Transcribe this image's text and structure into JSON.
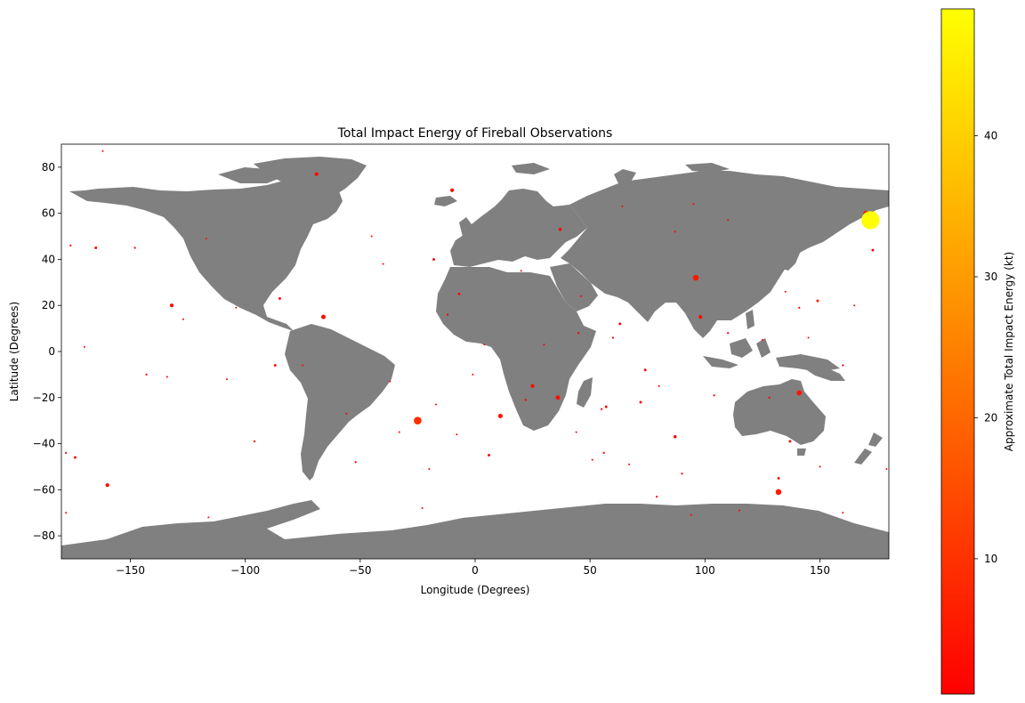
{
  "chart_data": {
    "type": "scatter",
    "title": "Total Impact Energy of Fireball Observations",
    "xlabel": "Longitude (Degrees)",
    "ylabel": "Latitude (Degrees)",
    "xlim": [
      -180,
      180
    ],
    "ylim": [
      -90,
      90
    ],
    "xticks": [
      -150,
      -100,
      -50,
      0,
      50,
      100,
      150
    ],
    "yticks": [
      -80,
      -60,
      -40,
      -20,
      0,
      20,
      40,
      60,
      80
    ],
    "xtick_labels": [
      "−150",
      "−100",
      "−50",
      "0",
      "50",
      "100",
      "150"
    ],
    "ytick_labels": [
      "−80",
      "−60",
      "−40",
      "−20",
      "0",
      "20",
      "40",
      "60",
      "80"
    ],
    "background_map": "world land masses (gray)",
    "land_color": "#808080",
    "ocean_color": "#ffffff",
    "grid": false,
    "colorbar": {
      "label": "Approximate Total Impact Energy (kt)",
      "range": [
        0.4,
        49
      ],
      "ticks": [
        10,
        20,
        30,
        40
      ],
      "tick_labels": [
        "10",
        "20",
        "30",
        "40"
      ],
      "colormap": "autumn",
      "color_low": "#ff0000",
      "color_high": "#ffff00"
    },
    "points": [
      {
        "lon": 172,
        "lat": 57,
        "energy": 49
      },
      {
        "lon": -25,
        "lat": -30,
        "energy": 9
      },
      {
        "lon": 96,
        "lat": 32,
        "energy": 5
      },
      {
        "lon": 132,
        "lat": -61,
        "energy": 5
      },
      {
        "lon": 170,
        "lat": 60,
        "energy": 4
      },
      {
        "lon": 141,
        "lat": -18,
        "energy": 4
      },
      {
        "lon": 36,
        "lat": -20,
        "energy": 3
      },
      {
        "lon": 11,
        "lat": -28,
        "energy": 3
      },
      {
        "lon": -66,
        "lat": 15,
        "energy": 3
      },
      {
        "lon": 25,
        "lat": -15,
        "energy": 2
      },
      {
        "lon": 98,
        "lat": 15,
        "energy": 2
      },
      {
        "lon": -132,
        "lat": 20,
        "energy": 2
      },
      {
        "lon": -160,
        "lat": -58,
        "energy": 2
      },
      {
        "lon": -10,
        "lat": 70,
        "energy": 2
      },
      {
        "lon": -69,
        "lat": 77,
        "energy": 2
      },
      {
        "lon": 37,
        "lat": 53,
        "energy": 1.5
      },
      {
        "lon": 87,
        "lat": -37,
        "energy": 1.5
      },
      {
        "lon": -174,
        "lat": -46,
        "energy": 1
      },
      {
        "lon": -165,
        "lat": 45,
        "energy": 1
      },
      {
        "lon": -18,
        "lat": 40,
        "energy": 1
      },
      {
        "lon": 57,
        "lat": -24,
        "energy": 1
      },
      {
        "lon": 149,
        "lat": 22,
        "energy": 1
      },
      {
        "lon": 137,
        "lat": -39,
        "energy": 1
      },
      {
        "lon": 132,
        "lat": -55,
        "energy": 1
      },
      {
        "lon": 173,
        "lat": 44,
        "energy": 1
      },
      {
        "lon": -85,
        "lat": 23,
        "energy": 1
      },
      {
        "lon": -87,
        "lat": -6,
        "energy": 1
      },
      {
        "lon": -7,
        "lat": 25,
        "energy": 1
      },
      {
        "lon": 6,
        "lat": -45,
        "energy": 1
      },
      {
        "lon": 63,
        "lat": 12,
        "energy": 1
      },
      {
        "lon": 72,
        "lat": -22,
        "energy": 1
      },
      {
        "lon": 74,
        "lat": -8,
        "energy": 1
      },
      {
        "lon": -148,
        "lat": 45,
        "energy": 0.6
      },
      {
        "lon": -176,
        "lat": 46,
        "energy": 0.6
      },
      {
        "lon": -178,
        "lat": -44,
        "energy": 0.6
      },
      {
        "lon": -143,
        "lat": -10,
        "energy": 0.6
      },
      {
        "lon": -12,
        "lat": 16,
        "energy": 0.6
      },
      {
        "lon": 22,
        "lat": -21,
        "energy": 0.6
      },
      {
        "lon": 56,
        "lat": -44,
        "energy": 0.6
      },
      {
        "lon": 104,
        "lat": -19,
        "energy": 0.6
      },
      {
        "lon": 141,
        "lat": 19,
        "energy": 0.6
      },
      {
        "lon": 128,
        "lat": -20,
        "energy": 0.6
      },
      {
        "lon": 160,
        "lat": -6,
        "energy": 0.6
      },
      {
        "lon": -52,
        "lat": -48,
        "energy": 0.6
      },
      {
        "lon": 90,
        "lat": -53,
        "energy": 0.6
      },
      {
        "lon": -96,
        "lat": -39,
        "energy": 0.6
      },
      {
        "lon": 110,
        "lat": 8,
        "energy": 0.6
      },
      {
        "lon": 60,
        "lat": 6,
        "energy": 0.6
      },
      {
        "lon": 45,
        "lat": 8,
        "energy": 0.6
      },
      {
        "lon": 55,
        "lat": -25,
        "energy": 0.6
      },
      {
        "lon": 79,
        "lat": -63,
        "energy": 0.6
      },
      {
        "lon": -117,
        "lat": 49,
        "energy": 0.4
      },
      {
        "lon": -134,
        "lat": -11,
        "energy": 0.4
      },
      {
        "lon": -104,
        "lat": 19,
        "energy": 0.4
      },
      {
        "lon": -45,
        "lat": 50,
        "energy": 0.4
      },
      {
        "lon": -40,
        "lat": 38,
        "energy": 0.4
      },
      {
        "lon": -37,
        "lat": -13,
        "energy": 0.4
      },
      {
        "lon": -33,
        "lat": -35,
        "energy": 0.4
      },
      {
        "lon": -20,
        "lat": -51,
        "energy": 0.4
      },
      {
        "lon": -8,
        "lat": -36,
        "energy": 0.4
      },
      {
        "lon": -1,
        "lat": -10,
        "energy": 0.4
      },
      {
        "lon": 4,
        "lat": 3,
        "energy": 0.4
      },
      {
        "lon": 30,
        "lat": 3,
        "energy": 0.4
      },
      {
        "lon": 44,
        "lat": -35,
        "energy": 0.4
      },
      {
        "lon": 51,
        "lat": -47,
        "energy": 0.4
      },
      {
        "lon": 67,
        "lat": -49,
        "energy": 0.4
      },
      {
        "lon": 80,
        "lat": -15,
        "energy": 0.4
      },
      {
        "lon": 94,
        "lat": -71,
        "energy": 0.4
      },
      {
        "lon": 115,
        "lat": -69,
        "energy": 0.4
      },
      {
        "lon": 125,
        "lat": 5,
        "energy": 0.4
      },
      {
        "lon": 160,
        "lat": -70,
        "energy": 0.4
      },
      {
        "lon": 179,
        "lat": -51,
        "energy": 0.4
      },
      {
        "lon": -162,
        "lat": 87,
        "energy": 0.4
      },
      {
        "lon": -170,
        "lat": 2,
        "energy": 0.4
      },
      {
        "lon": -178,
        "lat": -70,
        "energy": 0.4
      },
      {
        "lon": -116,
        "lat": -72,
        "energy": 0.4
      },
      {
        "lon": -23,
        "lat": -68,
        "energy": 0.4
      },
      {
        "lon": 145,
        "lat": 6,
        "energy": 0.4
      },
      {
        "lon": 150,
        "lat": -50,
        "energy": 0.4
      },
      {
        "lon": 110,
        "lat": 57,
        "energy": 0.4
      },
      {
        "lon": 95,
        "lat": 64,
        "energy": 0.4
      },
      {
        "lon": 64,
        "lat": 63,
        "energy": 0.4
      },
      {
        "lon": 165,
        "lat": 20,
        "energy": 0.4
      },
      {
        "lon": -127,
        "lat": 14,
        "energy": 0.4
      },
      {
        "lon": -108,
        "lat": -12,
        "energy": 0.4
      },
      {
        "lon": -75,
        "lat": -6,
        "energy": 0.4
      },
      {
        "lon": -56,
        "lat": -27,
        "energy": 0.4
      },
      {
        "lon": -17,
        "lat": -23,
        "energy": 0.4
      },
      {
        "lon": 20,
        "lat": 35,
        "energy": 0.4
      },
      {
        "lon": 46,
        "lat": 24,
        "energy": 0.4
      },
      {
        "lon": 87,
        "lat": 52,
        "energy": 0.4
      },
      {
        "lon": 135,
        "lat": 26,
        "energy": 0.4
      }
    ]
  }
}
